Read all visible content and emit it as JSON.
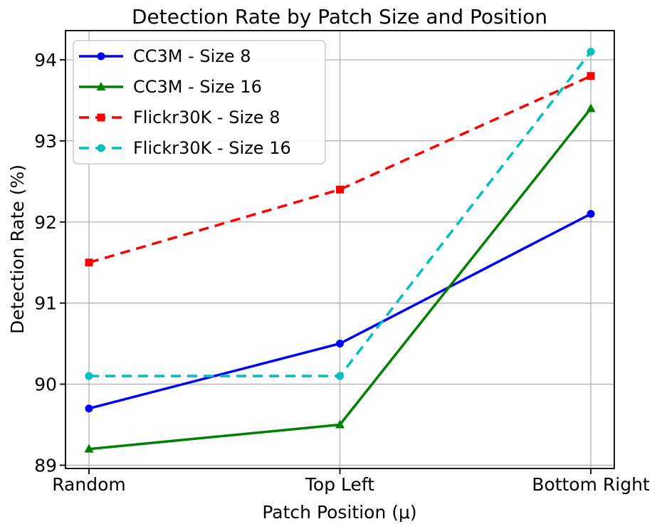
{
  "chart_data": {
    "type": "line",
    "title": "Detection Rate by Patch Size and Position",
    "xlabel": "Patch Position (μ)",
    "ylabel": "Detection Rate (%)",
    "categories": [
      "Random",
      "Top Left",
      "Bottom Right"
    ],
    "series": [
      {
        "name": "CC3M - Size 8",
        "values": [
          89.7,
          90.5,
          92.1
        ],
        "color": "#0000ff",
        "linestyle": "solid",
        "marker": "circle"
      },
      {
        "name": "CC3M - Size 16",
        "values": [
          89.2,
          89.5,
          93.4
        ],
        "color": "#008000",
        "linestyle": "solid",
        "marker": "triangle"
      },
      {
        "name": "Flickr30K - Size 8",
        "values": [
          91.5,
          92.4,
          93.8
        ],
        "color": "#ff0000",
        "linestyle": "dashed",
        "marker": "square"
      },
      {
        "name": "Flickr30K - Size 16",
        "values": [
          90.1,
          90.1,
          94.1
        ],
        "color": "#00bfbf",
        "linestyle": "dashed",
        "marker": "circle"
      }
    ],
    "yticks": [
      89,
      90,
      91,
      92,
      93,
      94
    ],
    "ylim": [
      88.96,
      94.36
    ],
    "grid": true,
    "grid_color": "#b0b0b0",
    "legend_position": "upper left"
  }
}
